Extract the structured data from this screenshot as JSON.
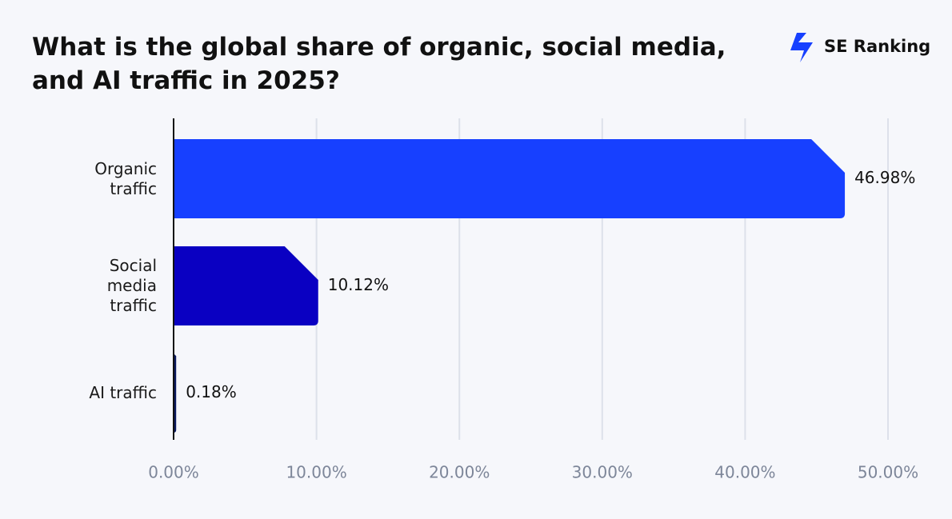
{
  "chart_data": {
    "type": "bar",
    "orientation": "horizontal",
    "title": "What is the global share of organic, social media, and AI traffic in 2025?",
    "brand": "SE Ranking",
    "categories": [
      "Organic traffic",
      "Social media traffic",
      "AI traffic"
    ],
    "values": [
      46.98,
      10.12,
      0.18
    ],
    "value_labels": [
      "46.98%",
      "10.12%",
      "0.18%"
    ],
    "colors": [
      "#1740ff",
      "#0a00c2",
      "#0b1a5e"
    ],
    "xlim": [
      0,
      50
    ],
    "xticks": [
      {
        "value": 0,
        "label": "0.00%"
      },
      {
        "value": 10,
        "label": "10.00%"
      },
      {
        "value": 20,
        "label": "20.00%"
      },
      {
        "value": 30,
        "label": "30.00%"
      },
      {
        "value": 40,
        "label": "40.00%"
      },
      {
        "value": 50,
        "label": "50.00%"
      }
    ],
    "grid": true
  }
}
